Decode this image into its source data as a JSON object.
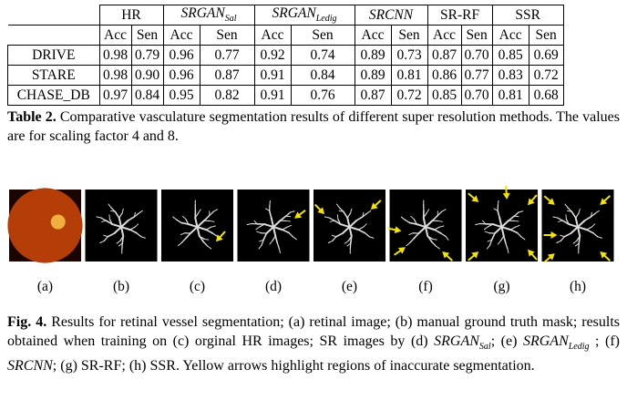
{
  "table": {
    "methods": [
      "HR",
      {
        "math": "SRGAN",
        "sub": "Sal"
      },
      {
        "math": "SRGAN",
        "sub": "Ledig"
      },
      {
        "math": "SRCNN"
      },
      "SR-RF",
      "SSR"
    ],
    "subheaders": [
      "Acc",
      "Sen",
      "Acc",
      "Sen",
      "Acc",
      "Sen",
      "Acc",
      "Sen",
      "Acc",
      "Sen",
      "Acc",
      "Sen"
    ],
    "rows": [
      [
        "DRIVE",
        "0.98",
        "0.79",
        "0.96",
        "0.77",
        "0.92",
        "0.74",
        "0.89",
        "0.73",
        "0.87",
        "0.70",
        "0.85",
        "0.69"
      ],
      [
        "STARE",
        "0.98",
        "0.90",
        "0.96",
        "0.87",
        "0.91",
        "0.84",
        "0.89",
        "0.81",
        "0.86",
        "0.77",
        "0.83",
        "0.72"
      ],
      [
        "CHASE_DB",
        "0.97",
        "0.84",
        "0.95",
        "0.82",
        "0.91",
        "0.76",
        "0.87",
        "0.72",
        "0.85",
        "0.70",
        "0.81",
        "0.68"
      ]
    ],
    "caption": {
      "label": "Table 2.",
      "text": "Comparative vasculature segmentation results of different super resolution methods. The values are for scaling factor 4 and 8."
    }
  },
  "figure": {
    "panels": [
      "(a)",
      "(b)",
      "(c)",
      "(d)",
      "(e)",
      "(f)",
      "(g)",
      "(h)"
    ],
    "caption": {
      "label": "Fig. 4.",
      "parts": [
        "Results for retinal vessel segmentation; (a) retinal image; (b) manual ground truth mask; results obtained when training on (c) orginal HR images; SR images by (d) ",
        {
          "math": "SRGAN",
          "sub": "Sal"
        },
        "; (e) ",
        {
          "math": "SRGAN",
          "sub": "Ledig"
        },
        " ; (f) ",
        {
          "math": "SRCNN"
        },
        "; (g) SR-RF; (h) SSR. Yellow arrows highlight regions of inaccurate segmentation."
      ]
    }
  }
}
